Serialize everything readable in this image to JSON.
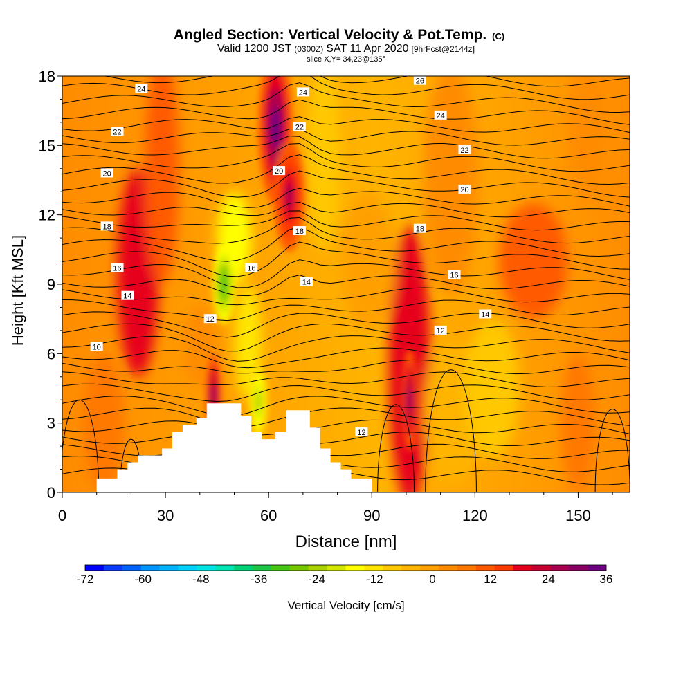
{
  "chart_data": {
    "type": "heatmap",
    "title": "Angled Section: Vertical Velocity & Pot.Temp.",
    "title_suffix": "(C)",
    "subtitle_parts": [
      "Valid 1200 JST",
      "(0300Z)",
      "SAT 11 Apr 2020",
      "[9hrFcst@2144z]"
    ],
    "slice_label": "slice X,Y= 34,23@135°",
    "xlabel": "Distance [nm]",
    "ylabel": "Height [Kft MSL]",
    "xlim": [
      0,
      165
    ],
    "ylim": [
      0,
      18
    ],
    "xticks": [
      0,
      30,
      60,
      90,
      120,
      150
    ],
    "yticks": [
      0,
      3,
      6,
      9,
      12,
      15,
      18
    ],
    "colorbar": {
      "label": "Vertical Velocity [cm/s]",
      "min": -72,
      "max": 36,
      "step": 4,
      "tick_labels": [
        "-72",
        "-60",
        "-48",
        "-36",
        "-24",
        "-12",
        "0",
        "12",
        "24",
        "36"
      ],
      "colors": [
        "#0000ff",
        "#0a3cff",
        "#0064ff",
        "#0096ff",
        "#00b4ff",
        "#00d2ff",
        "#00e6e6",
        "#00e6b4",
        "#00d278",
        "#1ec846",
        "#46c814",
        "#78c800",
        "#aad200",
        "#d2e600",
        "#ffff00",
        "#ffe600",
        "#ffc800",
        "#ffb400",
        "#ffa000",
        "#ff8c00",
        "#ff7800",
        "#ff5a00",
        "#ff3c00",
        "#e6001e",
        "#c80032",
        "#aa0050",
        "#8c0064",
        "#6e0082"
      ]
    },
    "terrain": [
      [
        0,
        0
      ],
      [
        10,
        0
      ],
      [
        10,
        0.6
      ],
      [
        16,
        0.6
      ],
      [
        16,
        1.0
      ],
      [
        19,
        1.0
      ],
      [
        19,
        1.3
      ],
      [
        22,
        1.3
      ],
      [
        22,
        1.6
      ],
      [
        29,
        1.6
      ],
      [
        29,
        1.9
      ],
      [
        32,
        1.9
      ],
      [
        32,
        2.6
      ],
      [
        35,
        2.6
      ],
      [
        35,
        2.9
      ],
      [
        39,
        2.9
      ],
      [
        39,
        3.2
      ],
      [
        42,
        3.2
      ],
      [
        42,
        3.85
      ],
      [
        52,
        3.85
      ],
      [
        52,
        3.3
      ],
      [
        55,
        3.3
      ],
      [
        55,
        2.6
      ],
      [
        58,
        2.6
      ],
      [
        58,
        2.3
      ],
      [
        62,
        2.3
      ],
      [
        62,
        2.6
      ],
      [
        65,
        2.6
      ],
      [
        65,
        3.55
      ],
      [
        72,
        3.55
      ],
      [
        72,
        2.8
      ],
      [
        75,
        2.8
      ],
      [
        75,
        1.9
      ],
      [
        78,
        1.9
      ],
      [
        78,
        1.3
      ],
      [
        81,
        1.3
      ],
      [
        81,
        1.0
      ],
      [
        84,
        1.0
      ],
      [
        84,
        0.6
      ],
      [
        90,
        0.6
      ],
      [
        90,
        0
      ],
      [
        0,
        0
      ]
    ],
    "velocity_blobs": [
      {
        "x": 62,
        "y": 15.8,
        "rx": 5,
        "ry": 3.4,
        "value": 36
      },
      {
        "x": 66,
        "y": 12.8,
        "rx": 4.5,
        "ry": 2.4,
        "value": 28
      },
      {
        "x": 44,
        "y": 4.2,
        "rx": 2.2,
        "ry": 1.8,
        "value": 32
      },
      {
        "x": 101,
        "y": 4.0,
        "rx": 2.4,
        "ry": 2.2,
        "value": 32
      },
      {
        "x": 47,
        "y": 9.0,
        "rx": 3.2,
        "ry": 1.7,
        "value": -32
      },
      {
        "x": 57,
        "y": 3.9,
        "rx": 2.6,
        "ry": 1.5,
        "value": -24
      }
    ],
    "contour_labels": [
      {
        "value": "24",
        "x": 23,
        "y": 17.45
      },
      {
        "value": "22",
        "x": 16,
        "y": 15.6
      },
      {
        "value": "20",
        "x": 13,
        "y": 13.8
      },
      {
        "value": "18",
        "x": 13,
        "y": 11.5
      },
      {
        "value": "16",
        "x": 16,
        "y": 9.7
      },
      {
        "value": "14",
        "x": 19,
        "y": 8.5
      },
      {
        "value": "10",
        "x": 10,
        "y": 6.3
      },
      {
        "value": "12",
        "x": 43,
        "y": 7.5
      },
      {
        "value": "16",
        "x": 55,
        "y": 9.7
      },
      {
        "value": "14",
        "x": 71,
        "y": 9.1
      },
      {
        "value": "24",
        "x": 70,
        "y": 17.3
      },
      {
        "value": "22",
        "x": 69,
        "y": 15.8
      },
      {
        "value": "20",
        "x": 63,
        "y": 13.9
      },
      {
        "value": "18",
        "x": 69,
        "y": 11.3
      },
      {
        "value": "26",
        "x": 104,
        "y": 17.8
      },
      {
        "value": "24",
        "x": 110,
        "y": 16.3
      },
      {
        "value": "22",
        "x": 117,
        "y": 14.8
      },
      {
        "value": "20",
        "x": 117,
        "y": 13.1
      },
      {
        "value": "18",
        "x": 104,
        "y": 11.4
      },
      {
        "value": "16",
        "x": 114,
        "y": 9.4
      },
      {
        "value": "14",
        "x": 123,
        "y": 7.7
      },
      {
        "value": "12",
        "x": 110,
        "y": 7.0
      },
      {
        "value": "12",
        "x": 87,
        "y": 2.6
      }
    ]
  }
}
